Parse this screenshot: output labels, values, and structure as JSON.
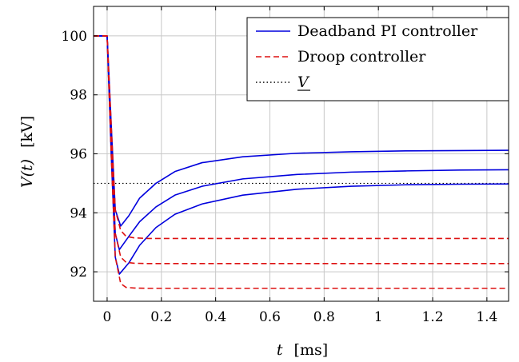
{
  "chart_data": {
    "type": "line",
    "title": "",
    "xlabel_var": "t",
    "xlabel_unit": "[ms]",
    "ylabel_var": "V(t)",
    "ylabel_unit": "[kV]",
    "xlim": [
      -0.05,
      1.48
    ],
    "ylim": [
      91.0,
      101.0
    ],
    "xticks": [
      0,
      0.2,
      0.4,
      0.6,
      0.8,
      1,
      1.2,
      1.4
    ],
    "xtick_labels": [
      "0",
      "0.2",
      "0.4",
      "0.6",
      "0.8",
      "1",
      "1.2",
      "1.4"
    ],
    "yticks": [
      92,
      94,
      96,
      98,
      100
    ],
    "ytick_labels": [
      "92",
      "94",
      "96",
      "98",
      "100"
    ],
    "grid": true,
    "legend_position": "top-right",
    "reference_line": {
      "name": "V",
      "value": 95.0,
      "color": "#000000",
      "style": "dotted"
    },
    "series": [
      {
        "name": "Deadband PI controller",
        "color": "#0000dd",
        "style": "solid",
        "curves": [
          {
            "x": [
              -0.05,
              0.0,
              0.015,
              0.03,
              0.05,
              0.08,
              0.12,
              0.18,
              0.25,
              0.35,
              0.5,
              0.7,
              0.9,
              1.1,
              1.3,
              1.48
            ],
            "y": [
              100.0,
              100.0,
              97.0,
              94.1,
              93.55,
              93.9,
              94.5,
              95.0,
              95.4,
              95.7,
              95.9,
              96.02,
              96.07,
              96.1,
              96.11,
              96.12
            ]
          },
          {
            "x": [
              -0.05,
              0.0,
              0.015,
              0.03,
              0.045,
              0.08,
              0.12,
              0.18,
              0.25,
              0.35,
              0.5,
              0.7,
              0.9,
              1.1,
              1.3,
              1.48
            ],
            "y": [
              100.0,
              100.0,
              96.5,
              93.3,
              92.75,
              93.2,
              93.7,
              94.2,
              94.6,
              94.9,
              95.15,
              95.3,
              95.38,
              95.42,
              95.45,
              95.46
            ]
          },
          {
            "x": [
              -0.05,
              0.0,
              0.015,
              0.03,
              0.045,
              0.08,
              0.12,
              0.18,
              0.25,
              0.35,
              0.5,
              0.7,
              0.9,
              1.1,
              1.3,
              1.48
            ],
            "y": [
              100.0,
              100.0,
              96.0,
              92.5,
              91.92,
              92.3,
              92.9,
              93.5,
              93.95,
              94.3,
              94.6,
              94.8,
              94.9,
              94.95,
              94.97,
              94.98
            ]
          }
        ]
      },
      {
        "name": "Droop controller",
        "color": "#dd1111",
        "style": "dashed",
        "curves": [
          {
            "x": [
              -0.05,
              0.0,
              0.015,
              0.03,
              0.05,
              0.07,
              0.1,
              0.15,
              1.48
            ],
            "y": [
              100.0,
              100.0,
              97.0,
              94.1,
              93.4,
              93.2,
              93.15,
              93.13,
              93.13
            ]
          },
          {
            "x": [
              -0.05,
              0.0,
              0.015,
              0.03,
              0.05,
              0.07,
              0.1,
              0.15,
              1.48
            ],
            "y": [
              100.0,
              100.0,
              96.5,
              93.3,
              92.5,
              92.32,
              92.29,
              92.28,
              92.28
            ]
          },
          {
            "x": [
              -0.05,
              0.0,
              0.015,
              0.03,
              0.05,
              0.07,
              0.1,
              0.15,
              1.48
            ],
            "y": [
              100.0,
              100.0,
              96.0,
              92.5,
              91.6,
              91.47,
              91.45,
              91.44,
              91.44
            ]
          }
        ]
      }
    ],
    "legend": [
      {
        "label": "Deadband PI controller",
        "color": "#0000dd",
        "style": "solid"
      },
      {
        "label": "Droop controller",
        "color": "#dd1111",
        "style": "dashed"
      },
      {
        "label": "V",
        "color": "#000000",
        "style": "dotted",
        "underline": true
      }
    ]
  }
}
